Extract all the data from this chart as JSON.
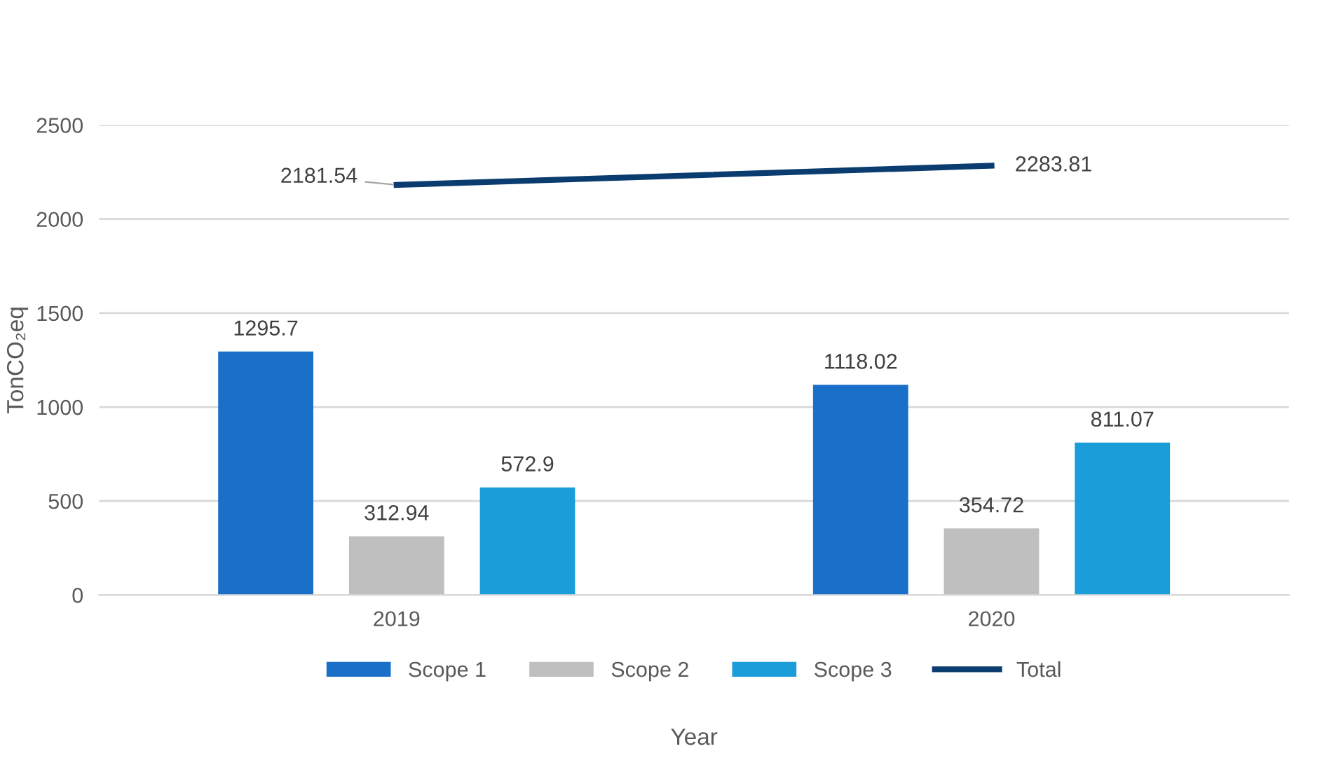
{
  "chart_data": {
    "type": "bar",
    "categories": [
      "2019",
      "2020"
    ],
    "xlabel": "Year",
    "ylabel": "TonCO₂eq",
    "series": [
      {
        "name": "Scope 1",
        "color": "#1a70c8",
        "values": [
          1295.7,
          1118.02
        ]
      },
      {
        "name": "Scope 2",
        "color": "#bfbfbf",
        "values": [
          312.94,
          354.72
        ]
      },
      {
        "name": "Scope 3",
        "color": "#1a9dd9",
        "values": [
          572.9,
          811.07
        ]
      },
      {
        "name": "Total",
        "type": "line",
        "color": "#0b3c6f",
        "values": [
          2181.54,
          2283.81
        ]
      }
    ],
    "ylim": [
      0,
      2500
    ],
    "yticks": [
      0,
      500,
      1000,
      1500,
      2000,
      2500
    ],
    "grid": "y",
    "legend": "bottom",
    "data_labels": true,
    "marker": "none",
    "line_style": "solid"
  }
}
